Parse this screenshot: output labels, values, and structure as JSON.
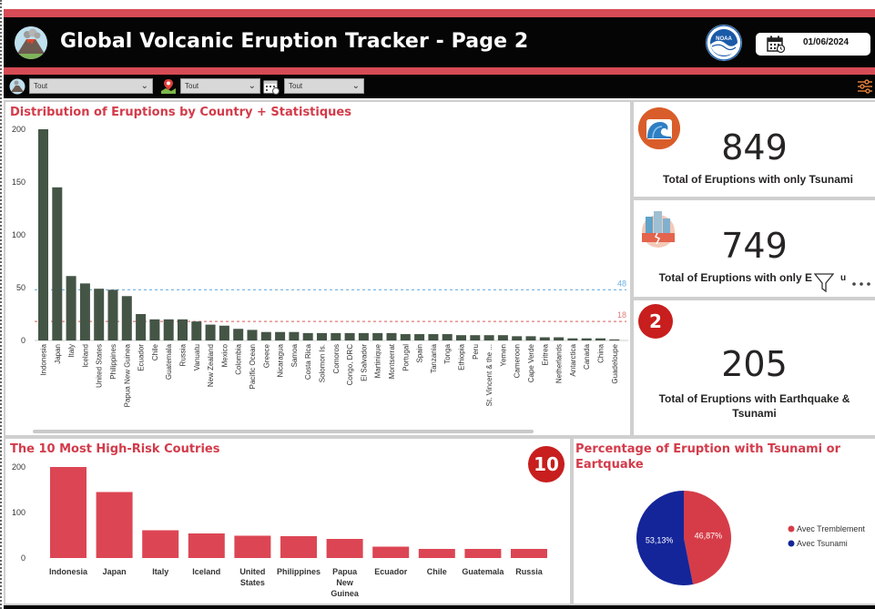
{
  "header": {
    "title": "Global Volcanic Eruption Tracker - Page 2",
    "date": "01/06/2024"
  },
  "filters": [
    {
      "icon": "volcano-filter-icon",
      "value": "Tout"
    },
    {
      "icon": "map-pin-icon",
      "value": "Tout"
    },
    {
      "icon": "calendar-filter-icon",
      "value": "Tout"
    }
  ],
  "colors": {
    "accent_red": "#d64b55",
    "title_red": "#d33b4a",
    "bar_green": "#445546",
    "bar_red": "#dc4654",
    "pie_red": "#d63c47",
    "pie_blue": "#14259a",
    "ref_blue": "#6aaee6",
    "ref_red": "#e07a7a"
  },
  "main_chart": {
    "title": "Distribution of Eruptions by Country + Statistiques",
    "chart_data": {
      "type": "bar",
      "categories": [
        "Indonesia",
        "Japan",
        "Italy",
        "Iceland",
        "United States",
        "Philippines",
        "Papua New Guinea",
        "Ecuador",
        "Chile",
        "Guatemala",
        "Russia",
        "Vanuatu",
        "New Zealand",
        "Mexico",
        "Colombia",
        "Pacific Ocean",
        "Greece",
        "Nicaragua",
        "Samoa",
        "Costa Rica",
        "Solomon Is.",
        "Comoros",
        "Congo, DRC",
        "El Salvador",
        "Martinique",
        "Montserrat",
        "Portugal",
        "Spain",
        "Tanzania",
        "Tonga",
        "Ethiopia",
        "Peru",
        "St. Vincent & the ...",
        "Yemen",
        "Cameroon",
        "Cape Verde",
        "Eritrea",
        "Netherlands",
        "Antarctica",
        "Canada",
        "China",
        "Guadeloupe"
      ],
      "values": [
        200,
        145,
        61,
        54,
        49,
        48,
        42,
        25,
        20,
        20,
        20,
        18,
        15,
        14,
        11,
        10,
        8,
        8,
        8,
        7,
        7,
        7,
        7,
        7,
        7,
        7,
        6,
        6,
        6,
        6,
        5,
        5,
        5,
        5,
        4,
        4,
        3,
        3,
        2,
        2,
        2,
        1
      ],
      "ylim": [
        0,
        200
      ],
      "yticks": [
        0,
        50,
        100,
        150,
        200
      ],
      "reference_lines": [
        {
          "value": 48,
          "label": "48"
        },
        {
          "value": 18,
          "label": "18"
        }
      ]
    }
  },
  "kpis": [
    {
      "value": "849",
      "label": "Total of Eruptions with only Tsunami"
    },
    {
      "value": "749",
      "label": "Total of Eruptions with only E"
    },
    {
      "value": "205",
      "label": "Total of Eruptions with Earthquake & Tsunami",
      "badge": "2"
    }
  ],
  "kpi_overflow_tail": "u",
  "top10": {
    "title": "The 10 Most High-Risk Coutries",
    "badge": "10",
    "chart_data": {
      "type": "bar",
      "categories": [
        "Indonesia",
        "Japan",
        "Italy",
        "Iceland",
        "United States",
        "Philippines",
        "Papua New Guinea",
        "Ecuador",
        "Chile",
        "Guatemala",
        "Russia"
      ],
      "labels": [
        [
          "Indonesia"
        ],
        [
          "Japan"
        ],
        [
          "Italy"
        ],
        [
          "Iceland"
        ],
        [
          "United",
          "States"
        ],
        [
          "Philippines"
        ],
        [
          "Papua",
          "New",
          "Guinea"
        ],
        [
          "Ecuador"
        ],
        [
          "Chile"
        ],
        [
          "Guatemala"
        ],
        [
          "Russia"
        ]
      ],
      "values": [
        200,
        145,
        61,
        54,
        49,
        48,
        42,
        25,
        20,
        20,
        20
      ],
      "ylim": [
        0,
        200
      ],
      "yticks": [
        0,
        100,
        200
      ]
    }
  },
  "pie": {
    "title_line1": "Percentage of Eruption with Tsunami or",
    "title_line2": "Eartquake",
    "chart_data": {
      "type": "pie",
      "slices": [
        {
          "name": "Avec Tremblement",
          "value": 46.87,
          "label": "46,87%"
        },
        {
          "name": "Avec Tsunami",
          "value": 53.13,
          "label": "53,13%"
        }
      ]
    }
  }
}
